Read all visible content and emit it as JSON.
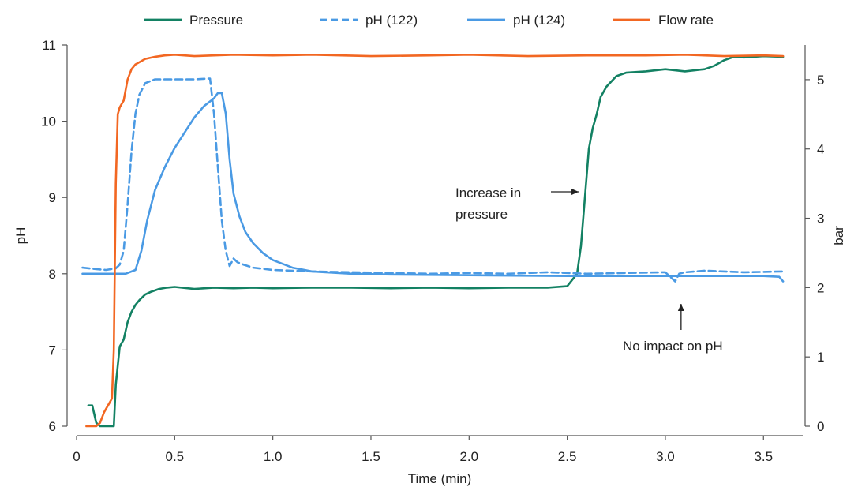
{
  "chart_data": {
    "type": "line",
    "xlabel": "Time (min)",
    "ylabel_left": "pH",
    "ylabel_right": "bar",
    "xlim": [
      0,
      3.7
    ],
    "ylim_left": [
      6,
      11
    ],
    "ylim_right": [
      0,
      5.5
    ],
    "x_ticks": [
      0,
      0.5,
      1.0,
      1.5,
      2.0,
      2.5,
      3.0,
      3.5
    ],
    "x_tick_labels": [
      "0",
      "0.5",
      "1.0",
      "1.5",
      "2.0",
      "2.5",
      "3.0",
      "3.5"
    ],
    "y_left_ticks": [
      6,
      7,
      8,
      9,
      10,
      11
    ],
    "y_left_tick_labels": [
      "6",
      "7",
      "8",
      "9",
      "10",
      "11"
    ],
    "y_right_ticks": [
      0,
      1,
      2,
      3,
      4,
      5
    ],
    "y_right_tick_labels": [
      "0",
      "1",
      "2",
      "3",
      "4",
      "5"
    ],
    "grid": false,
    "legend_position": "top",
    "series": [
      {
        "name": "Pressure",
        "axis": "right",
        "color": "#138163",
        "dash": "solid",
        "x": [
          0.06,
          0.08,
          0.1,
          0.12,
          0.14,
          0.16,
          0.19,
          0.2,
          0.22,
          0.24,
          0.26,
          0.28,
          0.3,
          0.32,
          0.35,
          0.38,
          0.42,
          0.46,
          0.5,
          0.6,
          0.7,
          0.8,
          0.9,
          1.0,
          1.2,
          1.4,
          1.6,
          1.8,
          2.0,
          2.2,
          2.4,
          2.5,
          2.55,
          2.57,
          2.59,
          2.61,
          2.63,
          2.65,
          2.67,
          2.7,
          2.75,
          2.8,
          2.9,
          3.0,
          3.1,
          3.2,
          3.25,
          3.3,
          3.35,
          3.4,
          3.5,
          3.6
        ],
        "values": [
          0.3,
          0.3,
          0.05,
          0.0,
          0.0,
          0.0,
          0.0,
          0.6,
          1.15,
          1.25,
          1.5,
          1.65,
          1.75,
          1.82,
          1.9,
          1.94,
          1.98,
          2.0,
          2.01,
          1.98,
          2.0,
          1.99,
          2.0,
          1.99,
          2.0,
          2.0,
          1.99,
          2.0,
          1.99,
          2.0,
          2.0,
          2.02,
          2.2,
          2.6,
          3.3,
          4.0,
          4.3,
          4.5,
          4.75,
          4.9,
          5.05,
          5.1,
          5.12,
          5.15,
          5.12,
          5.15,
          5.2,
          5.28,
          5.33,
          5.32,
          5.34,
          5.33
        ]
      },
      {
        "name": "pH (122)",
        "axis": "left",
        "color": "#4a9ae4",
        "dash": "dashed",
        "x": [
          0.03,
          0.1,
          0.15,
          0.2,
          0.22,
          0.24,
          0.26,
          0.28,
          0.3,
          0.32,
          0.35,
          0.4,
          0.45,
          0.5,
          0.6,
          0.68,
          0.7,
          0.72,
          0.74,
          0.76,
          0.78,
          0.8,
          0.82,
          0.85,
          0.9,
          1.0,
          1.2,
          1.4,
          1.6,
          1.8,
          2.0,
          2.2,
          2.4,
          2.6,
          2.8,
          3.0,
          3.05,
          3.07,
          3.1,
          3.2,
          3.4,
          3.6
        ],
        "values": [
          8.08,
          8.06,
          8.05,
          8.07,
          8.12,
          8.3,
          8.9,
          9.6,
          10.1,
          10.35,
          10.5,
          10.55,
          10.55,
          10.55,
          10.55,
          10.56,
          10.1,
          9.4,
          8.7,
          8.3,
          8.1,
          8.2,
          8.15,
          8.12,
          8.08,
          8.05,
          8.03,
          8.02,
          8.01,
          8.0,
          8.01,
          8.0,
          8.02,
          8.0,
          8.01,
          8.02,
          7.9,
          8.0,
          8.02,
          8.04,
          8.02,
          8.03
        ]
      },
      {
        "name": "pH (124)",
        "axis": "left",
        "color": "#4a9ae4",
        "dash": "solid",
        "x": [
          0.03,
          0.15,
          0.25,
          0.3,
          0.33,
          0.36,
          0.4,
          0.45,
          0.5,
          0.55,
          0.6,
          0.65,
          0.7,
          0.72,
          0.74,
          0.76,
          0.78,
          0.8,
          0.83,
          0.86,
          0.9,
          0.95,
          1.0,
          1.1,
          1.2,
          1.4,
          1.6,
          2.0,
          2.5,
          3.0,
          3.5,
          3.58,
          3.6
        ],
        "values": [
          8.0,
          8.0,
          8.0,
          8.05,
          8.3,
          8.7,
          9.1,
          9.4,
          9.65,
          9.85,
          10.05,
          10.2,
          10.3,
          10.37,
          10.37,
          10.1,
          9.5,
          9.05,
          8.75,
          8.55,
          8.4,
          8.27,
          8.18,
          8.08,
          8.03,
          8.0,
          7.99,
          7.98,
          7.97,
          7.97,
          7.97,
          7.96,
          7.9
        ]
      },
      {
        "name": "Flow rate",
        "axis": "right",
        "color": "#f26722",
        "dash": "solid",
        "x": [
          0.05,
          0.1,
          0.12,
          0.14,
          0.16,
          0.18,
          0.19,
          0.2,
          0.21,
          0.22,
          0.24,
          0.26,
          0.28,
          0.3,
          0.35,
          0.4,
          0.45,
          0.5,
          0.6,
          0.7,
          0.8,
          1.0,
          1.2,
          1.5,
          1.8,
          2.0,
          2.3,
          2.6,
          2.9,
          3.1,
          3.3,
          3.5,
          3.6
        ],
        "values": [
          0.0,
          0.0,
          0.05,
          0.2,
          0.3,
          0.4,
          1.1,
          3.5,
          4.5,
          4.6,
          4.7,
          5.0,
          5.15,
          5.22,
          5.3,
          5.33,
          5.35,
          5.36,
          5.34,
          5.35,
          5.36,
          5.35,
          5.36,
          5.34,
          5.35,
          5.36,
          5.34,
          5.35,
          5.35,
          5.36,
          5.34,
          5.35,
          5.34
        ]
      }
    ],
    "annotations": [
      {
        "id": "pressure-note",
        "lines": [
          "Increase in",
          "pressure"
        ],
        "target_x": 2.57,
        "target_axis": "right",
        "target_y": 3.5
      },
      {
        "id": "ph-note",
        "lines": [
          "No impact on pH"
        ],
        "target_x": 3.08,
        "target_axis": "left",
        "target_y": 7.4
      }
    ]
  }
}
